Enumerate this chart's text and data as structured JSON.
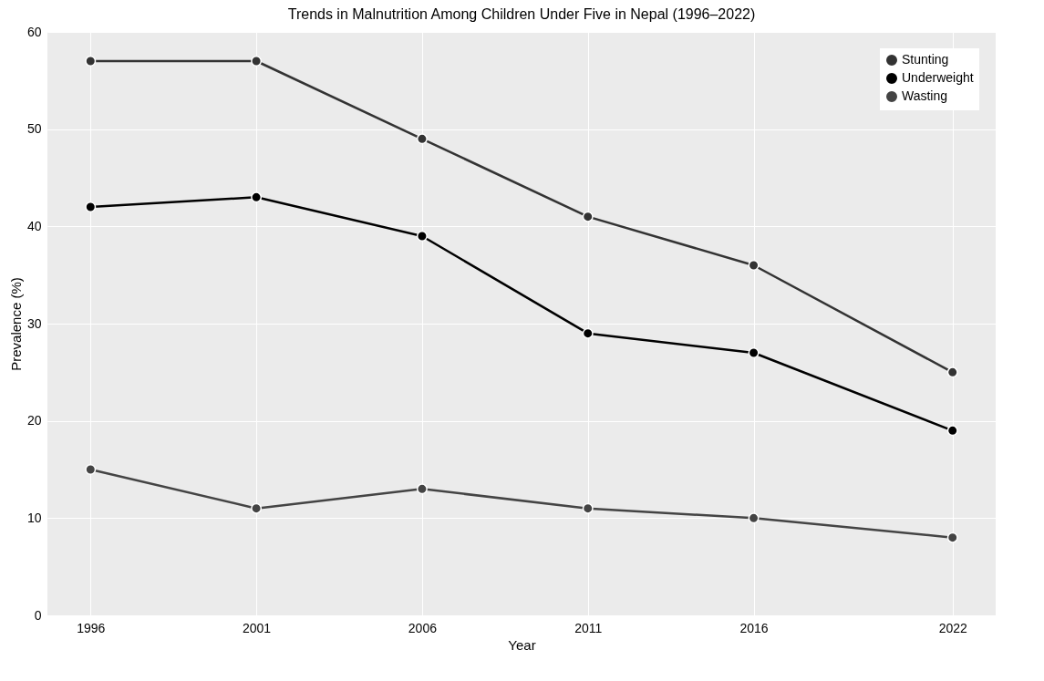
{
  "chart_data": {
    "type": "line",
    "title": "Trends in Malnutrition Among Children Under Five in Nepal (1996–2022)",
    "xlabel": "Year",
    "ylabel": "Prevalence (%)",
    "x": [
      1996,
      2001,
      2006,
      2011,
      2016,
      2022
    ],
    "series": [
      {
        "name": "Stunting",
        "color": "#333333",
        "values": [
          57,
          57,
          49,
          41,
          36,
          25
        ]
      },
      {
        "name": "Underweight",
        "color": "#000000",
        "values": [
          42,
          43,
          39,
          29,
          27,
          19
        ]
      },
      {
        "name": "Wasting",
        "color": "#444444",
        "values": [
          15,
          11,
          13,
          11,
          10,
          8
        ]
      }
    ],
    "xlim": [
      1994.7,
      2023.3
    ],
    "xticks": [
      1996,
      2001,
      2006,
      2011,
      2016,
      2022
    ],
    "ylim": [
      0,
      60
    ],
    "yticks": [
      0,
      10,
      20,
      30,
      40,
      50,
      60
    ],
    "grid": true,
    "legend": "top right",
    "marker": "circle",
    "line_style": "solid"
  }
}
